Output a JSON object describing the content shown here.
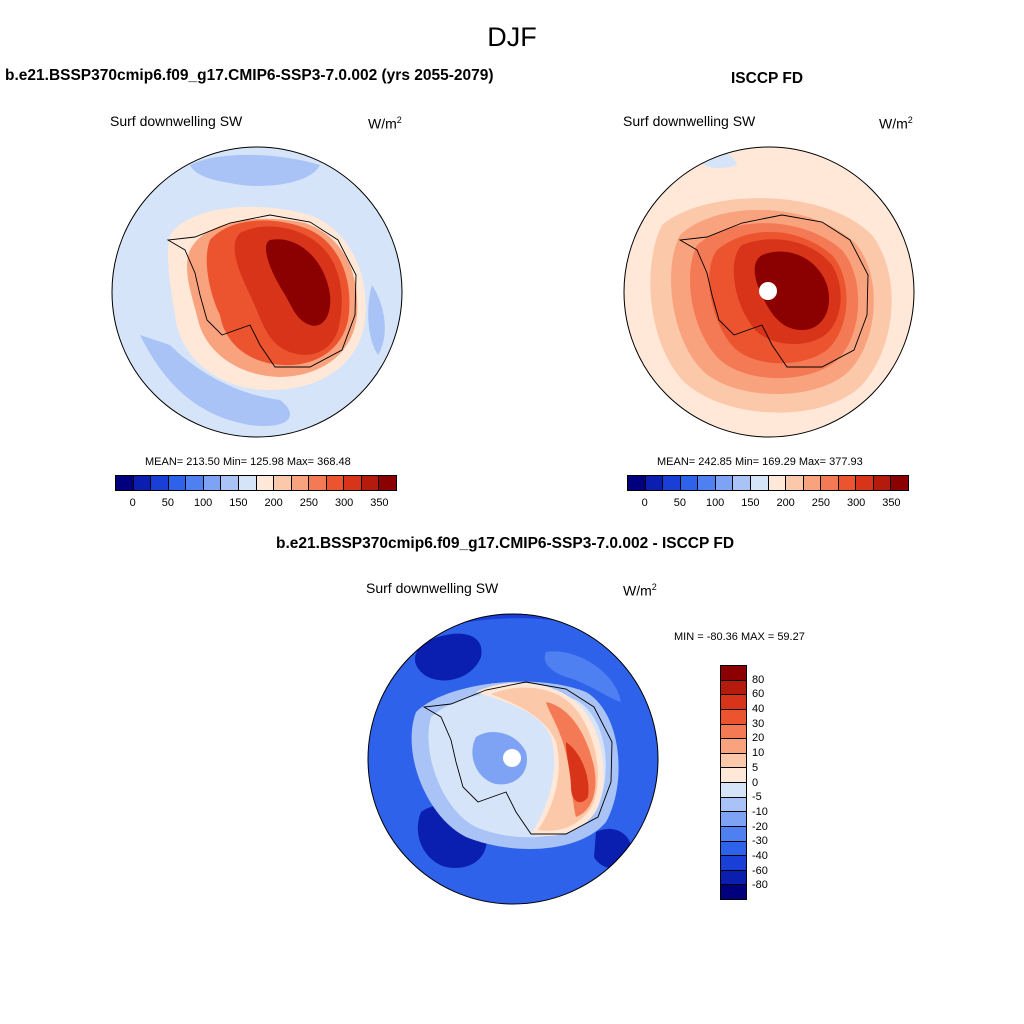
{
  "figure": {
    "title": "DJF"
  },
  "panels": [
    {
      "title": "b.e21.BSSP370cmip6.f09_g17.CMIP6-SSP3-7.0.002 (yrs 2055-2079)",
      "variable": "Surf downwelling SW",
      "units_base": "W/m",
      "units_exp": "2",
      "stats": "MEAN= 213.50  Min= 125.98  Max= 368.48"
    },
    {
      "title": "ISCCP FD",
      "variable": "Surf downwelling SW",
      "units_base": "W/m",
      "units_exp": "2",
      "stats": "MEAN= 242.85  Min= 169.29  Max= 377.93"
    },
    {
      "title": "b.e21.BSSP370cmip6.f09_g17.CMIP6-SSP3-7.0.002 - ISCCP FD",
      "variable": "Surf downwelling SW",
      "units_base": "W/m",
      "units_exp": "2",
      "stats": "MIN = -80.36 MAX =  59.27"
    }
  ],
  "colorbar_abs": {
    "colors": [
      "#00007f",
      "#0a1fb0",
      "#1a3fd6",
      "#2f62ea",
      "#4f80f2",
      "#7fa3f4",
      "#a9c3f6",
      "#d5e4f8",
      "#ffe8d8",
      "#fcc8aa",
      "#f9a27e",
      "#f47a55",
      "#ec5430",
      "#d8341a",
      "#b41b0d",
      "#8b0000"
    ],
    "ticks": [
      "0",
      "50",
      "100",
      "150",
      "200",
      "250",
      "300",
      "350"
    ]
  },
  "colorbar_diff": {
    "colors": [
      "#8b0000",
      "#b41b0d",
      "#d8341a",
      "#ec5430",
      "#f47a55",
      "#f9a27e",
      "#fcc8aa",
      "#ffe8d8",
      "#d5e4f8",
      "#a9c3f6",
      "#7fa3f4",
      "#4f80f2",
      "#2f62ea",
      "#1a3fd6",
      "#0a1fb0",
      "#00007f"
    ],
    "ticks": [
      "80",
      "60",
      "40",
      "30",
      "20",
      "10",
      "5",
      "0",
      "-5",
      "-10",
      "-20",
      "-30",
      "-40",
      "-60",
      "-80"
    ]
  }
}
